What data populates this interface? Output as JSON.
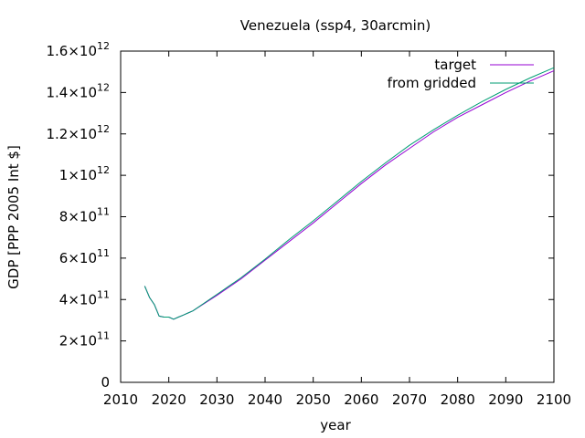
{
  "chart_data": {
    "type": "line",
    "title": "Venezuela (ssp4, 30arcmin)",
    "xlabel": "year",
    "ylabel": "GDP [PPP 2005 Int $]",
    "xlim": [
      2010,
      2100
    ],
    "ylim": [
      0,
      1600000000000
    ],
    "grid": false,
    "legend_position": "top-right",
    "x_ticks": [
      2010,
      2020,
      2030,
      2040,
      2050,
      2060,
      2070,
      2080,
      2090,
      2100
    ],
    "x_tick_labels": [
      "2010",
      "2020",
      "2030",
      "2040",
      "2050",
      "2060",
      "2070",
      "2080",
      "2090",
      "2100"
    ],
    "y_ticks": [
      {
        "value": 0,
        "mantissa": "0",
        "exponent": ""
      },
      {
        "value": 200000000000,
        "mantissa": "2×10",
        "exponent": "11"
      },
      {
        "value": 400000000000,
        "mantissa": "4×10",
        "exponent": "11"
      },
      {
        "value": 600000000000,
        "mantissa": "6×10",
        "exponent": "11"
      },
      {
        "value": 800000000000,
        "mantissa": "8×10",
        "exponent": "11"
      },
      {
        "value": 1000000000000,
        "mantissa": "1×10",
        "exponent": "12"
      },
      {
        "value": 1200000000000,
        "mantissa": "1.2×10",
        "exponent": "12"
      },
      {
        "value": 1400000000000,
        "mantissa": "1.4×10",
        "exponent": "12"
      },
      {
        "value": 1600000000000,
        "mantissa": "1.6×10",
        "exponent": "12"
      }
    ],
    "series": [
      {
        "name": "target",
        "color": "#9400d3",
        "x": [
          2015,
          2016,
          2017,
          2018,
          2019,
          2020,
          2021,
          2022,
          2023,
          2024,
          2025,
          2030,
          2035,
          2040,
          2045,
          2050,
          2055,
          2060,
          2065,
          2070,
          2075,
          2080,
          2085,
          2090,
          2095,
          2100
        ],
        "y": [
          465000000000,
          410000000000,
          375000000000,
          320000000000,
          315000000000,
          315000000000,
          305000000000,
          315000000000,
          325000000000,
          335000000000,
          345000000000,
          420000000000,
          500000000000,
          590000000000,
          680000000000,
          770000000000,
          865000000000,
          960000000000,
          1050000000000,
          1130000000000,
          1210000000000,
          1280000000000,
          1340000000000,
          1400000000000,
          1455000000000,
          1505000000000
        ]
      },
      {
        "name": "from gridded",
        "color": "#009e73",
        "x": [
          2015,
          2016,
          2017,
          2018,
          2019,
          2020,
          2021,
          2022,
          2023,
          2024,
          2025,
          2030,
          2035,
          2040,
          2045,
          2050,
          2055,
          2060,
          2065,
          2070,
          2075,
          2080,
          2085,
          2090,
          2095,
          2100
        ],
        "y": [
          465000000000,
          410000000000,
          375000000000,
          320000000000,
          315000000000,
          315000000000,
          305000000000,
          315000000000,
          325000000000,
          335000000000,
          345000000000,
          425000000000,
          505000000000,
          595000000000,
          690000000000,
          780000000000,
          875000000000,
          970000000000,
          1060000000000,
          1145000000000,
          1220000000000,
          1290000000000,
          1355000000000,
          1415000000000,
          1470000000000,
          1520000000000
        ]
      }
    ]
  }
}
